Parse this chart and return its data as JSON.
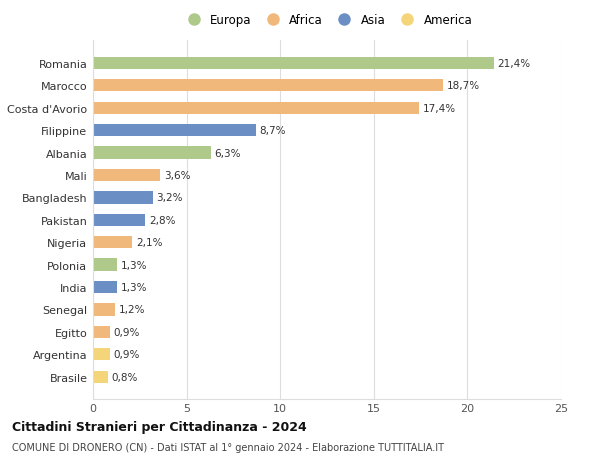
{
  "categories": [
    "Romania",
    "Marocco",
    "Costa d'Avorio",
    "Filippine",
    "Albania",
    "Mali",
    "Bangladesh",
    "Pakistan",
    "Nigeria",
    "Polonia",
    "India",
    "Senegal",
    "Egitto",
    "Argentina",
    "Brasile"
  ],
  "values": [
    21.4,
    18.7,
    17.4,
    8.7,
    6.3,
    3.6,
    3.2,
    2.8,
    2.1,
    1.3,
    1.3,
    1.2,
    0.9,
    0.9,
    0.8
  ],
  "labels": [
    "21,4%",
    "18,7%",
    "17,4%",
    "8,7%",
    "6,3%",
    "3,6%",
    "3,2%",
    "2,8%",
    "2,1%",
    "1,3%",
    "1,3%",
    "1,2%",
    "0,9%",
    "0,9%",
    "0,8%"
  ],
  "continents": [
    "Europa",
    "Africa",
    "Africa",
    "Asia",
    "Europa",
    "Africa",
    "Asia",
    "Asia",
    "Africa",
    "Europa",
    "Asia",
    "Africa",
    "Africa",
    "America",
    "America"
  ],
  "colors": {
    "Europa": "#aec98a",
    "Africa": "#f0b87a",
    "Asia": "#6b8fc4",
    "America": "#f5d57a"
  },
  "legend_order": [
    "Europa",
    "Africa",
    "Asia",
    "America"
  ],
  "title": "Cittadini Stranieri per Cittadinanza - 2024",
  "subtitle": "COMUNE DI DRONERO (CN) - Dati ISTAT al 1° gennaio 2024 - Elaborazione TUTTITALIA.IT",
  "xlim": [
    0,
    25
  ],
  "xticks": [
    0,
    5,
    10,
    15,
    20,
    25
  ],
  "bg_color": "#ffffff",
  "grid_color": "#dddddd",
  "bar_height": 0.55
}
